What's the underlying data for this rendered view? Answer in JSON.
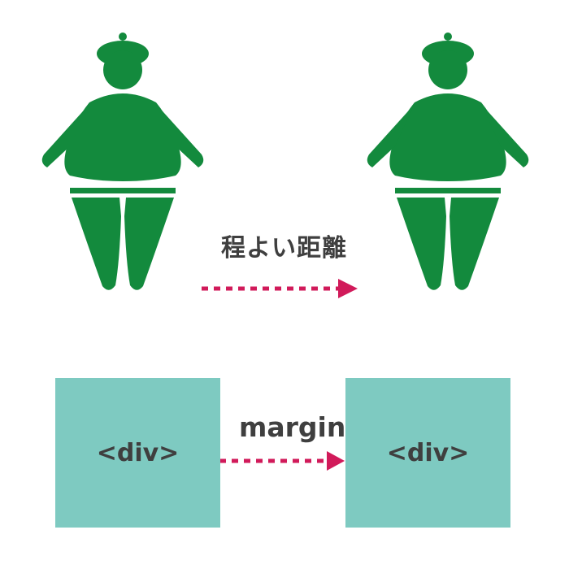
{
  "diagram": {
    "top_label": "程よい距離",
    "bottom_label": "margin",
    "boxes": [
      {
        "label": "<div>"
      },
      {
        "label": "<div>"
      }
    ]
  },
  "icons": {
    "figure": "sumo-wrestler-icon",
    "arrow": "dotted-right-arrow-icon"
  },
  "colors": {
    "figure": "#138a3d",
    "box": "#7ecac1",
    "arrow": "#d11a5a",
    "text": "#3f3f3f",
    "background": "#ffffff"
  }
}
